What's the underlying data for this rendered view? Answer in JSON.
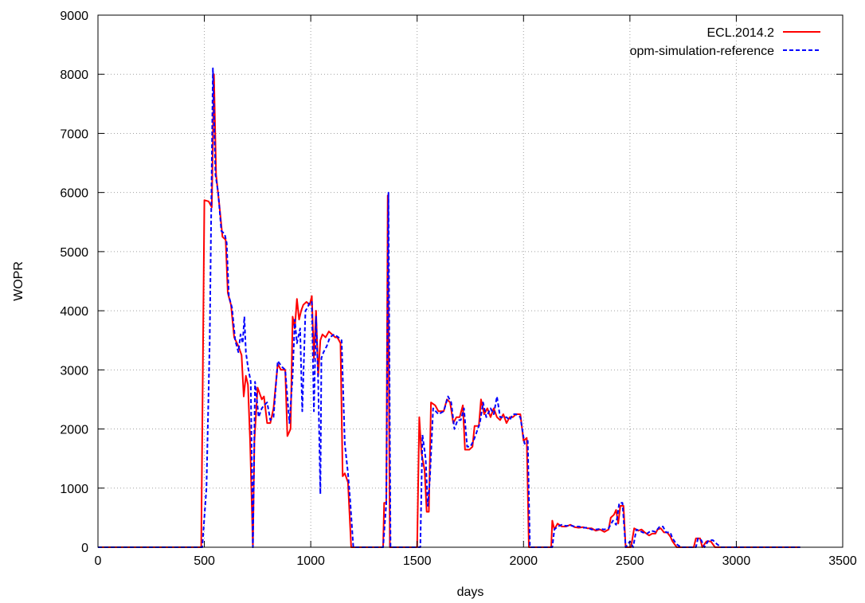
{
  "chart_data": {
    "type": "line",
    "title": "",
    "xlabel": "days",
    "ylabel": "WOPR",
    "xlim": [
      0,
      3500
    ],
    "ylim": [
      0,
      9000
    ],
    "xticks": [
      0,
      500,
      1000,
      1500,
      2000,
      2500,
      3000,
      3500
    ],
    "yticks": [
      0,
      1000,
      2000,
      3000,
      4000,
      5000,
      6000,
      7000,
      8000,
      9000
    ],
    "xtick_labels": [
      "0",
      "500",
      "1000",
      "1500",
      "2000",
      "2500",
      "3000",
      "3500"
    ],
    "ytick_labels": [
      "0",
      "1000",
      "2000",
      "3000",
      "4000",
      "5000",
      "6000",
      "7000",
      "8000",
      "9000"
    ],
    "grid": true,
    "legend_position": "top-right",
    "series": [
      {
        "name": "ECL.2014.2",
        "color": "#ff0000",
        "dash": "solid",
        "points": [
          [
            0,
            0
          ],
          [
            485,
            0
          ],
          [
            500,
            5870
          ],
          [
            520,
            5850
          ],
          [
            535,
            5750
          ],
          [
            545,
            8000
          ],
          [
            555,
            6300
          ],
          [
            570,
            5800
          ],
          [
            585,
            5250
          ],
          [
            600,
            5200
          ],
          [
            610,
            4300
          ],
          [
            625,
            4100
          ],
          [
            640,
            3550
          ],
          [
            660,
            3400
          ],
          [
            675,
            3250
          ],
          [
            685,
            2550
          ],
          [
            695,
            2900
          ],
          [
            705,
            2750
          ],
          [
            715,
            1800
          ],
          [
            728,
            0
          ],
          [
            735,
            1800
          ],
          [
            750,
            2700
          ],
          [
            770,
            2500
          ],
          [
            780,
            2550
          ],
          [
            795,
            2100
          ],
          [
            810,
            2100
          ],
          [
            825,
            2350
          ],
          [
            845,
            3100
          ],
          [
            860,
            3000
          ],
          [
            880,
            3000
          ],
          [
            890,
            1880
          ],
          [
            905,
            2000
          ],
          [
            915,
            3900
          ],
          [
            925,
            3700
          ],
          [
            935,
            4200
          ],
          [
            945,
            3850
          ],
          [
            955,
            4000
          ],
          [
            965,
            4100
          ],
          [
            980,
            4150
          ],
          [
            995,
            4100
          ],
          [
            1005,
            4250
          ],
          [
            1015,
            3200
          ],
          [
            1025,
            4000
          ],
          [
            1035,
            2900
          ],
          [
            1045,
            3500
          ],
          [
            1055,
            3600
          ],
          [
            1070,
            3550
          ],
          [
            1085,
            3650
          ],
          [
            1100,
            3600
          ],
          [
            1115,
            3550
          ],
          [
            1125,
            3550
          ],
          [
            1140,
            3450
          ],
          [
            1150,
            1200
          ],
          [
            1160,
            1250
          ],
          [
            1175,
            1100
          ],
          [
            1190,
            0
          ],
          [
            1340,
            0
          ],
          [
            1345,
            750
          ],
          [
            1355,
            750
          ],
          [
            1362,
            5950
          ],
          [
            1372,
            0
          ],
          [
            1500,
            0
          ],
          [
            1510,
            2200
          ],
          [
            1520,
            1600
          ],
          [
            1535,
            1300
          ],
          [
            1545,
            600
          ],
          [
            1555,
            600
          ],
          [
            1565,
            2450
          ],
          [
            1585,
            2400
          ],
          [
            1600,
            2300
          ],
          [
            1625,
            2300
          ],
          [
            1640,
            2500
          ],
          [
            1655,
            2450
          ],
          [
            1670,
            2100
          ],
          [
            1685,
            2200
          ],
          [
            1700,
            2200
          ],
          [
            1715,
            2400
          ],
          [
            1725,
            1650
          ],
          [
            1745,
            1650
          ],
          [
            1760,
            1700
          ],
          [
            1770,
            2050
          ],
          [
            1790,
            2050
          ],
          [
            1800,
            2500
          ],
          [
            1815,
            2250
          ],
          [
            1830,
            2350
          ],
          [
            1845,
            2200
          ],
          [
            1860,
            2350
          ],
          [
            1875,
            2200
          ],
          [
            1890,
            2150
          ],
          [
            1905,
            2250
          ],
          [
            1920,
            2100
          ],
          [
            1935,
            2200
          ],
          [
            1950,
            2200
          ],
          [
            1965,
            2250
          ],
          [
            1985,
            2250
          ],
          [
            2000,
            1800
          ],
          [
            2015,
            1850
          ],
          [
            2025,
            0
          ],
          [
            2130,
            0
          ],
          [
            2135,
            450
          ],
          [
            2145,
            300
          ],
          [
            2160,
            400
          ],
          [
            2180,
            350
          ],
          [
            2200,
            350
          ],
          [
            2220,
            380
          ],
          [
            2240,
            340
          ],
          [
            2260,
            330
          ],
          [
            2280,
            340
          ],
          [
            2300,
            320
          ],
          [
            2320,
            320
          ],
          [
            2340,
            280
          ],
          [
            2360,
            300
          ],
          [
            2380,
            260
          ],
          [
            2400,
            300
          ],
          [
            2410,
            500
          ],
          [
            2425,
            550
          ],
          [
            2435,
            630
          ],
          [
            2445,
            400
          ],
          [
            2455,
            700
          ],
          [
            2470,
            700
          ],
          [
            2480,
            0
          ],
          [
            2505,
            0
          ],
          [
            2520,
            320
          ],
          [
            2540,
            280
          ],
          [
            2555,
            300
          ],
          [
            2570,
            250
          ],
          [
            2590,
            200
          ],
          [
            2605,
            230
          ],
          [
            2620,
            230
          ],
          [
            2630,
            300
          ],
          [
            2645,
            320
          ],
          [
            2660,
            250
          ],
          [
            2675,
            250
          ],
          [
            2690,
            180
          ],
          [
            2700,
            100
          ],
          [
            2720,
            0
          ],
          [
            2800,
            0
          ],
          [
            2810,
            150
          ],
          [
            2830,
            150
          ],
          [
            2840,
            0
          ],
          [
            2860,
            100
          ],
          [
            2880,
            100
          ],
          [
            2900,
            0
          ],
          [
            3300,
            0
          ]
        ]
      },
      {
        "name": "opm-simulation-reference",
        "color": "#0000ff",
        "dash": "dashed",
        "points": [
          [
            0,
            0
          ],
          [
            490,
            0
          ],
          [
            510,
            1000
          ],
          [
            525,
            3500
          ],
          [
            540,
            8100
          ],
          [
            552,
            6300
          ],
          [
            565,
            6000
          ],
          [
            580,
            5350
          ],
          [
            595,
            5300
          ],
          [
            605,
            5150
          ],
          [
            615,
            4250
          ],
          [
            630,
            4050
          ],
          [
            645,
            3500
          ],
          [
            660,
            3300
          ],
          [
            670,
            3600
          ],
          [
            680,
            3450
          ],
          [
            688,
            3900
          ],
          [
            695,
            3300
          ],
          [
            705,
            3050
          ],
          [
            718,
            2800
          ],
          [
            728,
            0
          ],
          [
            738,
            2800
          ],
          [
            755,
            2200
          ],
          [
            770,
            2350
          ],
          [
            780,
            2400
          ],
          [
            795,
            2450
          ],
          [
            810,
            2150
          ],
          [
            825,
            2200
          ],
          [
            845,
            3150
          ],
          [
            865,
            3050
          ],
          [
            880,
            3000
          ],
          [
            900,
            2100
          ],
          [
            915,
            2900
          ],
          [
            925,
            3850
          ],
          [
            935,
            3450
          ],
          [
            950,
            3700
          ],
          [
            960,
            2300
          ],
          [
            975,
            4000
          ],
          [
            985,
            4050
          ],
          [
            995,
            4150
          ],
          [
            1005,
            4150
          ],
          [
            1015,
            2300
          ],
          [
            1025,
            3900
          ],
          [
            1035,
            2800
          ],
          [
            1045,
            900
          ],
          [
            1050,
            3200
          ],
          [
            1060,
            3300
          ],
          [
            1075,
            3400
          ],
          [
            1090,
            3550
          ],
          [
            1110,
            3600
          ],
          [
            1130,
            3550
          ],
          [
            1145,
            3500
          ],
          [
            1160,
            1750
          ],
          [
            1175,
            1250
          ],
          [
            1185,
            800
          ],
          [
            1200,
            0
          ],
          [
            1340,
            0
          ],
          [
            1355,
            750
          ],
          [
            1365,
            6000
          ],
          [
            1375,
            0
          ],
          [
            1505,
            0
          ],
          [
            1515,
            0
          ],
          [
            1525,
            1900
          ],
          [
            1540,
            1500
          ],
          [
            1550,
            700
          ],
          [
            1560,
            1150
          ],
          [
            1575,
            2350
          ],
          [
            1600,
            2250
          ],
          [
            1625,
            2300
          ],
          [
            1645,
            2550
          ],
          [
            1660,
            2450
          ],
          [
            1675,
            2000
          ],
          [
            1690,
            2150
          ],
          [
            1705,
            2150
          ],
          [
            1720,
            2350
          ],
          [
            1735,
            1700
          ],
          [
            1750,
            1700
          ],
          [
            1765,
            1800
          ],
          [
            1780,
            1950
          ],
          [
            1795,
            2100
          ],
          [
            1810,
            2450
          ],
          [
            1825,
            2200
          ],
          [
            1845,
            2350
          ],
          [
            1860,
            2250
          ],
          [
            1875,
            2550
          ],
          [
            1890,
            2200
          ],
          [
            1905,
            2200
          ],
          [
            1920,
            2200
          ],
          [
            1935,
            2150
          ],
          [
            1950,
            2250
          ],
          [
            1965,
            2250
          ],
          [
            1985,
            2200
          ],
          [
            2005,
            1750
          ],
          [
            2020,
            1800
          ],
          [
            2030,
            0
          ],
          [
            2135,
            0
          ],
          [
            2145,
            300
          ],
          [
            2160,
            350
          ],
          [
            2180,
            380
          ],
          [
            2200,
            360
          ],
          [
            2220,
            370
          ],
          [
            2240,
            350
          ],
          [
            2260,
            350
          ],
          [
            2280,
            330
          ],
          [
            2300,
            330
          ],
          [
            2320,
            300
          ],
          [
            2340,
            300
          ],
          [
            2360,
            310
          ],
          [
            2380,
            300
          ],
          [
            2400,
            320
          ],
          [
            2420,
            450
          ],
          [
            2435,
            380
          ],
          [
            2450,
            750
          ],
          [
            2465,
            750
          ],
          [
            2480,
            0
          ],
          [
            2500,
            100
          ],
          [
            2515,
            0
          ],
          [
            2530,
            300
          ],
          [
            2545,
            280
          ],
          [
            2560,
            250
          ],
          [
            2580,
            230
          ],
          [
            2600,
            280
          ],
          [
            2620,
            260
          ],
          [
            2640,
            350
          ],
          [
            2655,
            350
          ],
          [
            2670,
            250
          ],
          [
            2690,
            250
          ],
          [
            2700,
            150
          ],
          [
            2720,
            50
          ],
          [
            2740,
            0
          ],
          [
            2810,
            0
          ],
          [
            2820,
            150
          ],
          [
            2835,
            120
          ],
          [
            2850,
            0
          ],
          [
            2870,
            120
          ],
          [
            2890,
            120
          ],
          [
            2910,
            50
          ],
          [
            2930,
            0
          ],
          [
            3300,
            0
          ]
        ]
      }
    ]
  }
}
